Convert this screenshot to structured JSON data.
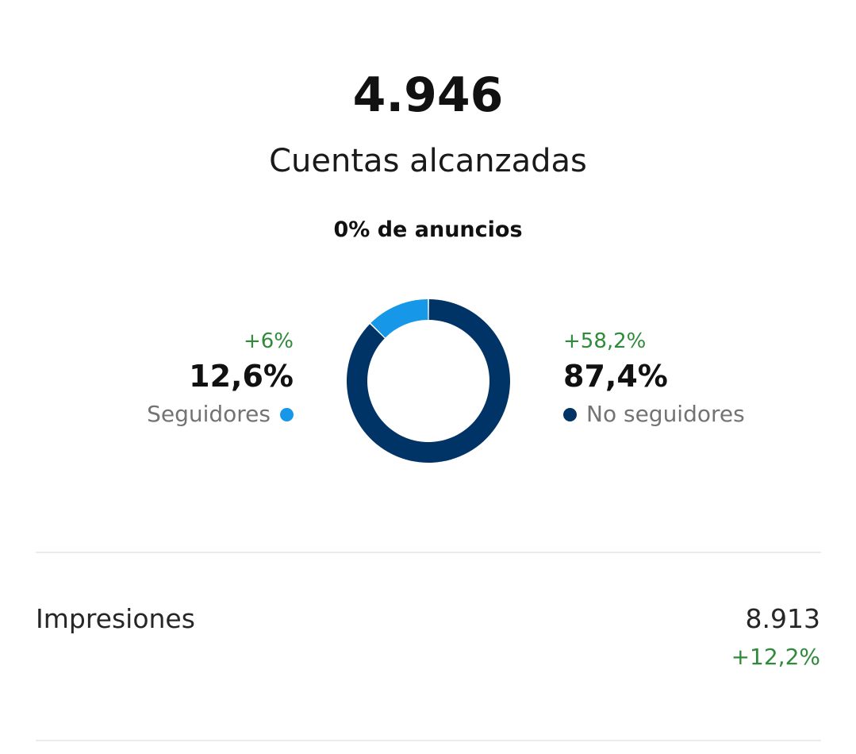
{
  "summary": {
    "total": "4.946",
    "label": "Cuentas alcanzadas",
    "ads_note": "0% de anuncios"
  },
  "colors": {
    "followers": "#1797e8",
    "non_followers": "#003466",
    "positive_delta": "#2e8b3a"
  },
  "chart_data": {
    "type": "pie",
    "style": "donut",
    "categories": [
      "Seguidores",
      "No seguidores"
    ],
    "values": [
      12.6,
      87.4
    ],
    "value_labels": [
      "12,6%",
      "87,4%"
    ],
    "changes": [
      "+6%",
      "+58,2%"
    ],
    "colors": [
      "#1797e8",
      "#003466"
    ],
    "title": ""
  },
  "followers": {
    "delta": "+6%",
    "percent": "12,6%",
    "label": "Seguidores"
  },
  "non_followers": {
    "delta": "+58,2%",
    "percent": "87,4%",
    "label": "No seguidores"
  },
  "impressions": {
    "label": "Impresiones",
    "value": "8.913",
    "delta": "+12,2%"
  }
}
